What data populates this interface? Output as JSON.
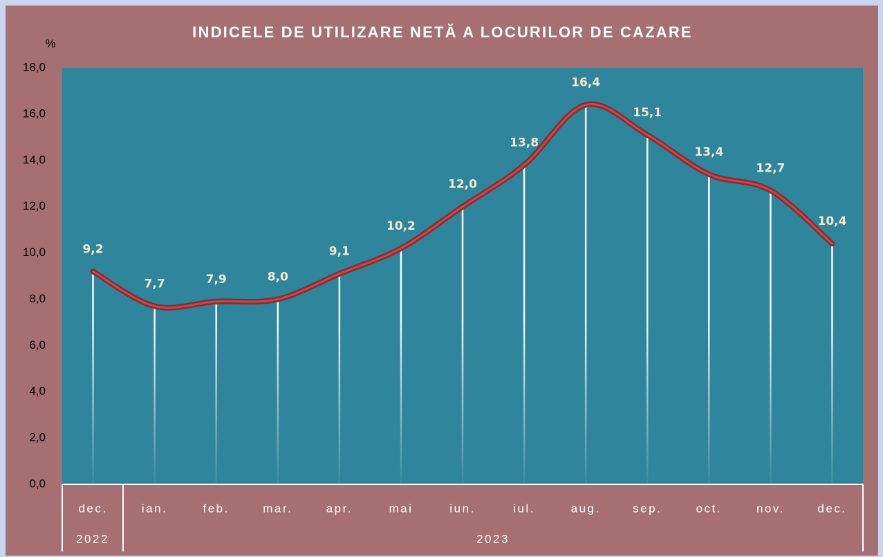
{
  "chart_data": {
    "type": "line",
    "title": "INDICELE DE UTILIZARE NETĂ A LOCURILOR DE CAZARE",
    "y_label": "%",
    "categories": [
      "dec.",
      "ian.",
      "feb.",
      "mar.",
      "apr.",
      "mai",
      "iun.",
      "iul.",
      "aug.",
      "sep.",
      "oct.",
      "nov.",
      "dec."
    ],
    "category_groups": [
      "2022",
      "2023"
    ],
    "values": [
      9.2,
      7.7,
      7.9,
      8.0,
      9.1,
      10.2,
      12.0,
      13.8,
      16.4,
      15.1,
      13.4,
      12.7,
      10.4
    ],
    "value_labels": [
      "9,2",
      "7,7",
      "7,9",
      "8,0",
      "9,1",
      "10,2",
      "12,0",
      "13,8",
      "16,4",
      "15,1",
      "13,4",
      "12,7",
      "10,4"
    ],
    "color": "#8b2b2e",
    "ylim": [
      0,
      18
    ],
    "yticks": [
      {
        "value": 0,
        "label": "0,0"
      },
      {
        "value": 2,
        "label": "2,0"
      },
      {
        "value": 4,
        "label": "4,0"
      },
      {
        "value": 6,
        "label": "6,0"
      },
      {
        "value": 8,
        "label": "8,0"
      },
      {
        "value": 10,
        "label": "10,0"
      },
      {
        "value": 12,
        "label": "12,0"
      },
      {
        "value": 14,
        "label": "14,0"
      },
      {
        "value": 16,
        "label": "16,0"
      },
      {
        "value": 18,
        "label": "18,0"
      }
    ],
    "grid": false
  }
}
